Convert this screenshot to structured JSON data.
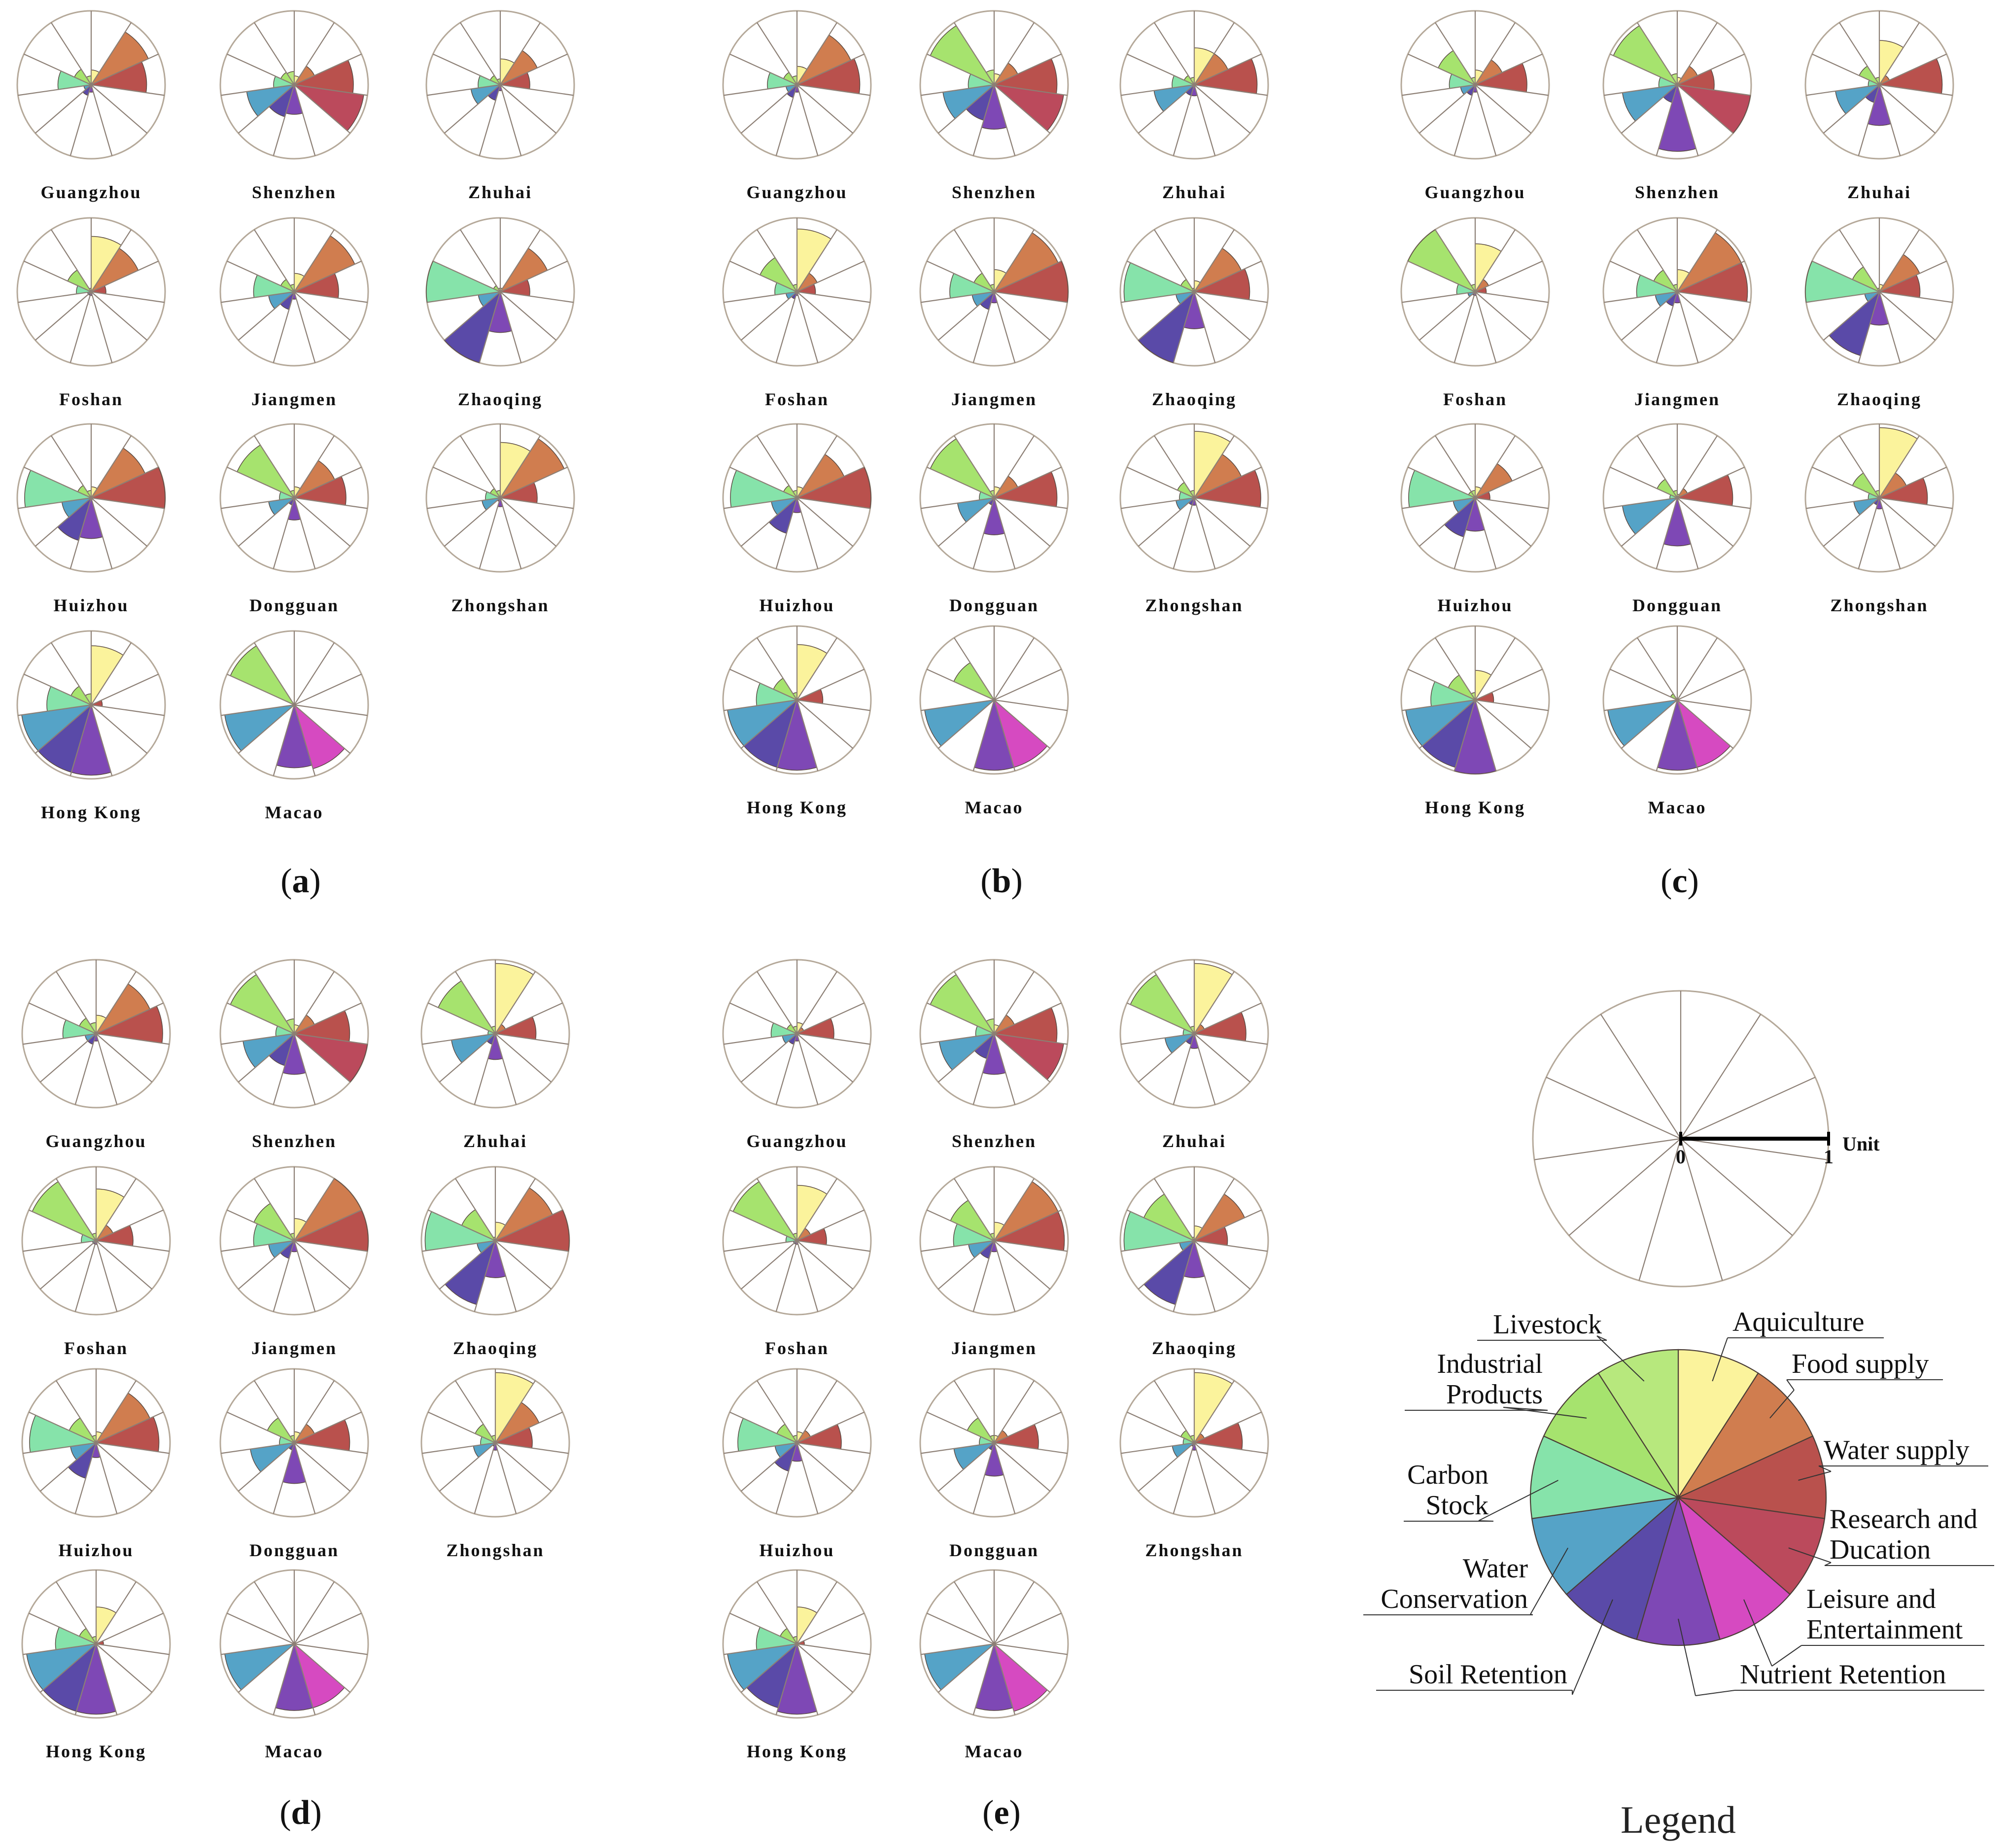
{
  "chart_data": {
    "type": "polar-area",
    "title": "",
    "categories": [
      "Aquiculture",
      "Food supply",
      "Water supply",
      "Research and Ducation",
      "Leisure and Entertainment",
      "Nutrient Retention",
      "Soil Retention",
      "Water Conservation",
      "Carbon Stock",
      "Industrial Products",
      "Livestock"
    ],
    "colors": [
      "#fbf39c",
      "#d07d4f",
      "#b9514d",
      "#bb4a5c",
      "#d64ac1",
      "#7e48b5",
      "#5a4aa8",
      "#55a3c7",
      "#86e3aa",
      "#a6e36e",
      "#b7e87d"
    ],
    "panels": [
      {
        "label": "a",
        "cities": [
          {
            "name": "Guangzhou",
            "values": [
              0.2,
              0.85,
              0.75,
              0.0,
              0.0,
              0.1,
              0.15,
              0.1,
              0.45,
              0.25,
              0.12
            ]
          },
          {
            "name": "Shenzhen",
            "values": [
              0.12,
              0.3,
              0.8,
              0.95,
              0.0,
              0.4,
              0.45,
              0.65,
              0.28,
              0.2,
              0.18
            ]
          },
          {
            "name": "Zhuhai",
            "values": [
              0.35,
              0.55,
              0.4,
              0.0,
              0.0,
              0.08,
              0.22,
              0.4,
              0.3,
              0.15,
              0.08
            ]
          },
          {
            "name": "Foshan",
            "values": [
              0.75,
              0.7,
              0.2,
              0.0,
              0.0,
              0.05,
              0.05,
              0.05,
              0.2,
              0.35,
              0.05
            ]
          },
          {
            "name": "Jiangmen",
            "values": [
              0.25,
              0.9,
              0.6,
              0.0,
              0.0,
              0.1,
              0.25,
              0.35,
              0.55,
              0.2,
              0.1
            ]
          },
          {
            "name": "Zhaoqing",
            "values": [
              0.05,
              0.7,
              0.4,
              0.0,
              0.0,
              0.55,
              1.0,
              0.3,
              1.0,
              0.1,
              0.05
            ]
          },
          {
            "name": "Huizhou",
            "values": [
              0.15,
              0.8,
              1.0,
              0.0,
              0.0,
              0.55,
              0.6,
              0.4,
              0.9,
              0.2,
              0.1
            ]
          },
          {
            "name": "Dongguan",
            "values": [
              0.15,
              0.6,
              0.7,
              0.0,
              0.0,
              0.3,
              0.1,
              0.35,
              0.2,
              0.85,
              0.1
            ]
          },
          {
            "name": "Zhongshan",
            "values": [
              0.75,
              0.95,
              0.5,
              0.0,
              0.0,
              0.12,
              0.05,
              0.25,
              0.2,
              0.15,
              0.1
            ]
          },
          {
            "name": "Hong Kong",
            "values": [
              0.8,
              0.0,
              0.15,
              0.0,
              0.0,
              0.95,
              0.95,
              0.95,
              0.6,
              0.3,
              0.15
            ]
          },
          {
            "name": "Macao",
            "values": [
              0.0,
              0.0,
              0.0,
              0.0,
              0.9,
              0.85,
              0.0,
              0.95,
              0.0,
              0.95,
              0.0
            ]
          }
        ]
      },
      {
        "label": "b",
        "cities": [
          {
            "name": "Guangzhou",
            "values": [
              0.25,
              0.8,
              0.85,
              0.0,
              0.0,
              0.1,
              0.18,
              0.15,
              0.4,
              0.2,
              0.12
            ]
          },
          {
            "name": "Shenzhen",
            "values": [
              0.15,
              0.35,
              0.85,
              0.95,
              0.0,
              0.6,
              0.5,
              0.7,
              0.35,
              0.95,
              0.2
            ]
          },
          {
            "name": "Zhuhai",
            "values": [
              0.5,
              0.5,
              0.85,
              0.0,
              0.0,
              0.15,
              0.15,
              0.55,
              0.3,
              0.15,
              0.1
            ]
          },
          {
            "name": "Foshan",
            "values": [
              0.85,
              0.3,
              0.25,
              0.0,
              0.0,
              0.05,
              0.1,
              0.15,
              0.3,
              0.55,
              0.1
            ]
          },
          {
            "name": "Jiangmen",
            "values": [
              0.3,
              0.95,
              1.0,
              0.0,
              0.0,
              0.15,
              0.25,
              0.3,
              0.6,
              0.3,
              0.1
            ]
          },
          {
            "name": "Zhaoqing",
            "values": [
              0.15,
              0.7,
              0.75,
              0.0,
              0.0,
              0.5,
              1.0,
              0.25,
              0.95,
              0.2,
              0.05
            ]
          },
          {
            "name": "Huizhou",
            "values": [
              0.15,
              0.7,
              1.0,
              0.0,
              0.0,
              0.2,
              0.5,
              0.35,
              0.9,
              0.2,
              0.1
            ]
          },
          {
            "name": "Dongguan",
            "values": [
              0.15,
              0.35,
              0.85,
              0.0,
              0.0,
              0.5,
              0.1,
              0.5,
              0.2,
              0.95,
              0.1
            ]
          },
          {
            "name": "Zhongshan",
            "values": [
              0.9,
              0.7,
              0.9,
              0.0,
              0.0,
              0.1,
              0.1,
              0.25,
              0.2,
              0.25,
              0.1
            ]
          },
          {
            "name": "Hong Kong",
            "values": [
              0.75,
              0.0,
              0.35,
              0.0,
              0.0,
              0.95,
              0.95,
              0.95,
              0.55,
              0.35,
              0.1
            ]
          },
          {
            "name": "Macao",
            "values": [
              0.0,
              0.0,
              0.0,
              0.0,
              0.95,
              0.95,
              0.0,
              0.95,
              0.0,
              0.6,
              0.0
            ]
          }
        ]
      },
      {
        "label": "c",
        "cities": [
          {
            "name": "Guangzhou",
            "values": [
              0.2,
              0.4,
              0.7,
              0.0,
              0.0,
              0.1,
              0.15,
              0.2,
              0.35,
              0.55,
              0.1
            ]
          },
          {
            "name": "Shenzhen",
            "values": [
              0.1,
              0.3,
              0.5,
              1.0,
              0.0,
              0.9,
              0.25,
              0.75,
              0.25,
              0.95,
              0.15
            ]
          },
          {
            "name": "Zhuhai",
            "values": [
              0.6,
              0.15,
              0.85,
              0.0,
              0.0,
              0.55,
              0.25,
              0.6,
              0.15,
              0.3,
              0.1
            ]
          },
          {
            "name": "Foshan",
            "values": [
              0.65,
              0.2,
              0.15,
              0.0,
              0.0,
              0.05,
              0.05,
              0.1,
              0.25,
              1.0,
              0.1
            ]
          },
          {
            "name": "Jiangmen",
            "values": [
              0.3,
              0.95,
              0.95,
              0.0,
              0.0,
              0.15,
              0.2,
              0.3,
              0.55,
              0.35,
              0.1
            ]
          },
          {
            "name": "Zhaoqing",
            "values": [
              0.1,
              0.6,
              0.55,
              0.0,
              0.0,
              0.45,
              0.9,
              0.2,
              1.0,
              0.4,
              0.05
            ]
          },
          {
            "name": "Huizhou",
            "values": [
              0.15,
              0.55,
              0.2,
              0.0,
              0.0,
              0.45,
              0.55,
              0.3,
              0.9,
              0.1,
              0.1
            ]
          },
          {
            "name": "Dongguan",
            "values": [
              0.05,
              0.15,
              0.75,
              0.0,
              0.0,
              0.65,
              0.0,
              0.75,
              0.1,
              0.3,
              0.1
            ]
          },
          {
            "name": "Zhongshan",
            "values": [
              0.95,
              0.4,
              0.65,
              0.0,
              0.0,
              0.15,
              0.1,
              0.35,
              0.15,
              0.4,
              0.1
            ]
          },
          {
            "name": "Hong Kong",
            "values": [
              0.4,
              0.0,
              0.25,
              0.0,
              0.0,
              1.0,
              0.95,
              0.95,
              0.6,
              0.4,
              0.1
            ]
          },
          {
            "name": "Macao",
            "values": [
              0.0,
              0.0,
              0.0,
              0.0,
              0.95,
              0.95,
              0.0,
              0.95,
              0.0,
              0.1,
              0.0
            ]
          }
        ]
      },
      {
        "label": "d",
        "cities": [
          {
            "name": "Guangzhou",
            "values": [
              0.25,
              0.8,
              0.9,
              0.0,
              0.0,
              0.1,
              0.15,
              0.15,
              0.45,
              0.25,
              0.15
            ]
          },
          {
            "name": "Shenzhen",
            "values": [
              0.12,
              0.3,
              0.75,
              1.0,
              0.0,
              0.55,
              0.45,
              0.7,
              0.25,
              0.95,
              0.2
            ]
          },
          {
            "name": "Zhuhai",
            "values": [
              0.95,
              0.15,
              0.55,
              0.0,
              0.0,
              0.35,
              0.15,
              0.6,
              0.1,
              0.85,
              0.1
            ]
          },
          {
            "name": "Foshan",
            "values": [
              0.7,
              0.25,
              0.5,
              0.0,
              0.0,
              0.05,
              0.05,
              0.05,
              0.2,
              0.95,
              0.1
            ]
          },
          {
            "name": "Jiangmen",
            "values": [
              0.3,
              1.0,
              1.0,
              0.0,
              0.0,
              0.15,
              0.25,
              0.35,
              0.55,
              0.6,
              0.1
            ]
          },
          {
            "name": "Zhaoqing",
            "values": [
              0.25,
              0.85,
              1.0,
              0.0,
              0.0,
              0.5,
              0.9,
              0.25,
              0.95,
              0.5,
              0.05
            ]
          },
          {
            "name": "Huizhou",
            "values": [
              0.15,
              0.8,
              0.85,
              0.0,
              0.0,
              0.2,
              0.5,
              0.35,
              0.9,
              0.4,
              0.1
            ]
          },
          {
            "name": "Dongguan",
            "values": [
              0.15,
              0.3,
              0.75,
              0.0,
              0.0,
              0.55,
              0.1,
              0.6,
              0.2,
              0.4,
              0.1
            ]
          },
          {
            "name": "Zhongshan",
            "values": [
              0.95,
              0.65,
              0.5,
              0.0,
              0.0,
              0.1,
              0.05,
              0.3,
              0.2,
              0.3,
              0.1
            ]
          },
          {
            "name": "Hong Kong",
            "values": [
              0.5,
              0.0,
              0.1,
              0.0,
              0.0,
              0.95,
              0.95,
              0.95,
              0.55,
              0.25,
              0.1
            ]
          },
          {
            "name": "Macao",
            "values": [
              0.0,
              0.0,
              0.0,
              0.0,
              0.9,
              0.9,
              0.0,
              0.95,
              0.0,
              0.0,
              0.0
            ]
          }
        ]
      },
      {
        "label": "e",
        "cities": [
          {
            "name": "Guangzhou",
            "values": [
              0.15,
              0.1,
              0.5,
              0.0,
              0.0,
              0.1,
              0.15,
              0.2,
              0.35,
              0.15,
              0.1
            ]
          },
          {
            "name": "Shenzhen",
            "values": [
              0.12,
              0.3,
              0.85,
              0.95,
              0.0,
              0.55,
              0.35,
              0.75,
              0.25,
              0.95,
              0.2
            ]
          },
          {
            "name": "Zhuhai",
            "values": [
              0.95,
              0.15,
              0.7,
              0.0,
              0.0,
              0.2,
              0.15,
              0.4,
              0.15,
              0.95,
              0.1
            ]
          },
          {
            "name": "Foshan",
            "values": [
              0.75,
              0.2,
              0.4,
              0.0,
              0.0,
              0.05,
              0.05,
              0.05,
              0.15,
              0.95,
              0.1
            ]
          },
          {
            "name": "Jiangmen",
            "values": [
              0.25,
              0.95,
              0.95,
              0.0,
              0.0,
              0.15,
              0.25,
              0.35,
              0.55,
              0.65,
              0.1
            ]
          },
          {
            "name": "Zhaoqing",
            "values": [
              0.2,
              0.75,
              0.45,
              0.0,
              0.0,
              0.5,
              0.9,
              0.2,
              0.95,
              0.75,
              0.05
            ]
          },
          {
            "name": "Huizhou",
            "values": [
              0.15,
              0.2,
              0.6,
              0.0,
              0.0,
              0.25,
              0.4,
              0.3,
              0.8,
              0.3,
              0.1
            ]
          },
          {
            "name": "Dongguan",
            "values": [
              0.1,
              0.2,
              0.6,
              0.0,
              0.0,
              0.45,
              0.1,
              0.55,
              0.2,
              0.4,
              0.1
            ]
          },
          {
            "name": "Zhongshan",
            "values": [
              0.95,
              0.15,
              0.65,
              0.0,
              0.0,
              0.1,
              0.05,
              0.3,
              0.15,
              0.2,
              0.1
            ]
          },
          {
            "name": "Hong Kong",
            "values": [
              0.5,
              0.0,
              0.1,
              0.0,
              0.0,
              0.95,
              0.9,
              0.95,
              0.55,
              0.25,
              0.1
            ]
          },
          {
            "name": "Macao",
            "values": [
              0.0,
              0.0,
              0.0,
              0.0,
              0.95,
              0.9,
              0.0,
              0.95,
              0.0,
              0.0,
              0.0
            ]
          }
        ]
      }
    ],
    "legend": {
      "title": "Legend",
      "unit_text": "Unit",
      "tick_zero": "0",
      "tick_one": "1",
      "labels": [
        [
          "Aquiculture"
        ],
        [
          "Food supply"
        ],
        [
          "Water supply"
        ],
        [
          "Research and",
          "Ducation"
        ],
        [
          "Leisure and",
          "Entertainment"
        ],
        [
          "Nutrient Retention"
        ],
        [
          "Soil Retention"
        ],
        [
          "Water",
          "Conservation"
        ],
        [
          "Carbon",
          "Stock"
        ],
        [
          "Industrial",
          "Products"
        ],
        [
          "Livestock"
        ]
      ]
    }
  }
}
